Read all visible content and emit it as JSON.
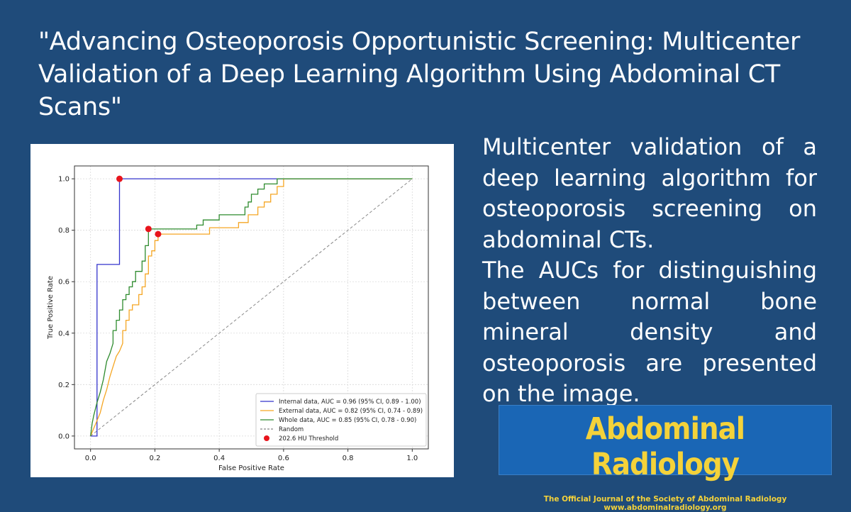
{
  "header": {
    "title": "\"Advancing Osteoporosis Opportunistic Screening: Multicenter Validation of a Deep Learning Algorithm Using Abdominal CT Scans\""
  },
  "body": {
    "paragraph1": "Multicenter validation of a deep learning algorithm for osteoporosis screening on abdominal CTs.",
    "paragraph2": "The AUCs for distinguishing between normal bone mineral density and osteoporosis are presented on the image."
  },
  "journal": {
    "name": "Abdominal Radiology",
    "tagline": "The Official Journal of the Society of Abdominal Radiology www.abdominalradiology.org"
  },
  "chart_data": {
    "type": "line",
    "title": "",
    "xlabel": "False Positive Rate",
    "ylabel": "True Positive Rate",
    "xlim": [
      -0.05,
      1.05
    ],
    "ylim": [
      -0.05,
      1.05
    ],
    "xticks": [
      "0.0",
      "0.2",
      "0.4",
      "0.6",
      "0.8",
      "1.0"
    ],
    "yticks": [
      "0.0",
      "0.2",
      "0.4",
      "0.6",
      "0.8",
      "1.0"
    ],
    "grid": true,
    "legend_position": "lower-right",
    "colors": {
      "internal": "#3333cc",
      "external": "#f5a623",
      "whole": "#2e8b2e",
      "random": "#888888",
      "threshold": "#e8141c"
    },
    "series": [
      {
        "name": "Internal data, AUC = 0.96 (95% CI, 0.89 - 1.00)",
        "key": "internal",
        "points": [
          [
            0,
            0
          ],
          [
            0.02,
            0
          ],
          [
            0.02,
            0.667
          ],
          [
            0.09,
            0.667
          ],
          [
            0.09,
            1.0
          ],
          [
            0.58,
            1.0
          ],
          [
            1.0,
            1.0
          ]
        ]
      },
      {
        "name": "External data, AUC = 0.82 (95% CI, 0.74 - 0.89)",
        "key": "external",
        "points": [
          [
            0,
            0
          ],
          [
            0.01,
            0.03
          ],
          [
            0.02,
            0.06
          ],
          [
            0.03,
            0.09
          ],
          [
            0.04,
            0.14
          ],
          [
            0.05,
            0.18
          ],
          [
            0.06,
            0.23
          ],
          [
            0.07,
            0.27
          ],
          [
            0.08,
            0.31
          ],
          [
            0.09,
            0.33
          ],
          [
            0.1,
            0.36
          ],
          [
            0.1,
            0.41
          ],
          [
            0.11,
            0.41
          ],
          [
            0.11,
            0.45
          ],
          [
            0.12,
            0.45
          ],
          [
            0.12,
            0.49
          ],
          [
            0.13,
            0.49
          ],
          [
            0.13,
            0.51
          ],
          [
            0.15,
            0.51
          ],
          [
            0.15,
            0.55
          ],
          [
            0.16,
            0.55
          ],
          [
            0.16,
            0.58
          ],
          [
            0.17,
            0.58
          ],
          [
            0.17,
            0.63
          ],
          [
            0.18,
            0.63
          ],
          [
            0.18,
            0.7
          ],
          [
            0.19,
            0.7
          ],
          [
            0.19,
            0.72
          ],
          [
            0.2,
            0.72
          ],
          [
            0.2,
            0.76
          ],
          [
            0.21,
            0.76
          ],
          [
            0.21,
            0.785
          ],
          [
            0.37,
            0.785
          ],
          [
            0.37,
            0.81
          ],
          [
            0.46,
            0.81
          ],
          [
            0.46,
            0.83
          ],
          [
            0.49,
            0.83
          ],
          [
            0.49,
            0.86
          ],
          [
            0.52,
            0.86
          ],
          [
            0.52,
            0.89
          ],
          [
            0.54,
            0.89
          ],
          [
            0.54,
            0.91
          ],
          [
            0.56,
            0.91
          ],
          [
            0.56,
            0.94
          ],
          [
            0.58,
            0.94
          ],
          [
            0.58,
            0.97
          ],
          [
            0.6,
            0.97
          ],
          [
            0.6,
            1.0
          ],
          [
            1.0,
            1.0
          ]
        ]
      },
      {
        "name": "Whole data, AUC = 0.85 (95% CI, 0.78 - 0.90)",
        "key": "whole",
        "points": [
          [
            0,
            0
          ],
          [
            0.005,
            0.05
          ],
          [
            0.01,
            0.08
          ],
          [
            0.02,
            0.13
          ],
          [
            0.03,
            0.17
          ],
          [
            0.04,
            0.22
          ],
          [
            0.05,
            0.29
          ],
          [
            0.06,
            0.32
          ],
          [
            0.07,
            0.36
          ],
          [
            0.07,
            0.41
          ],
          [
            0.08,
            0.41
          ],
          [
            0.08,
            0.45
          ],
          [
            0.09,
            0.45
          ],
          [
            0.09,
            0.49
          ],
          [
            0.1,
            0.49
          ],
          [
            0.1,
            0.53
          ],
          [
            0.11,
            0.53
          ],
          [
            0.11,
            0.55
          ],
          [
            0.12,
            0.55
          ],
          [
            0.12,
            0.58
          ],
          [
            0.13,
            0.58
          ],
          [
            0.13,
            0.6
          ],
          [
            0.14,
            0.6
          ],
          [
            0.14,
            0.64
          ],
          [
            0.16,
            0.64
          ],
          [
            0.16,
            0.68
          ],
          [
            0.17,
            0.68
          ],
          [
            0.17,
            0.74
          ],
          [
            0.18,
            0.74
          ],
          [
            0.18,
            0.805
          ],
          [
            0.33,
            0.805
          ],
          [
            0.33,
            0.82
          ],
          [
            0.35,
            0.82
          ],
          [
            0.35,
            0.84
          ],
          [
            0.4,
            0.84
          ],
          [
            0.4,
            0.86
          ],
          [
            0.48,
            0.86
          ],
          [
            0.48,
            0.89
          ],
          [
            0.49,
            0.89
          ],
          [
            0.49,
            0.91
          ],
          [
            0.5,
            0.91
          ],
          [
            0.5,
            0.94
          ],
          [
            0.52,
            0.94
          ],
          [
            0.52,
            0.96
          ],
          [
            0.54,
            0.96
          ],
          [
            0.54,
            0.98
          ],
          [
            0.58,
            0.98
          ],
          [
            0.58,
            1.0
          ],
          [
            1.0,
            1.0
          ]
        ]
      },
      {
        "name": "Random",
        "key": "random",
        "dashed": true,
        "points": [
          [
            0,
            0
          ],
          [
            1,
            1
          ]
        ]
      }
    ],
    "threshold": {
      "name": "202.6 HU Threshold",
      "points": [
        [
          0.09,
          1.0
        ],
        [
          0.18,
          0.805
        ],
        [
          0.21,
          0.785
        ]
      ]
    }
  }
}
